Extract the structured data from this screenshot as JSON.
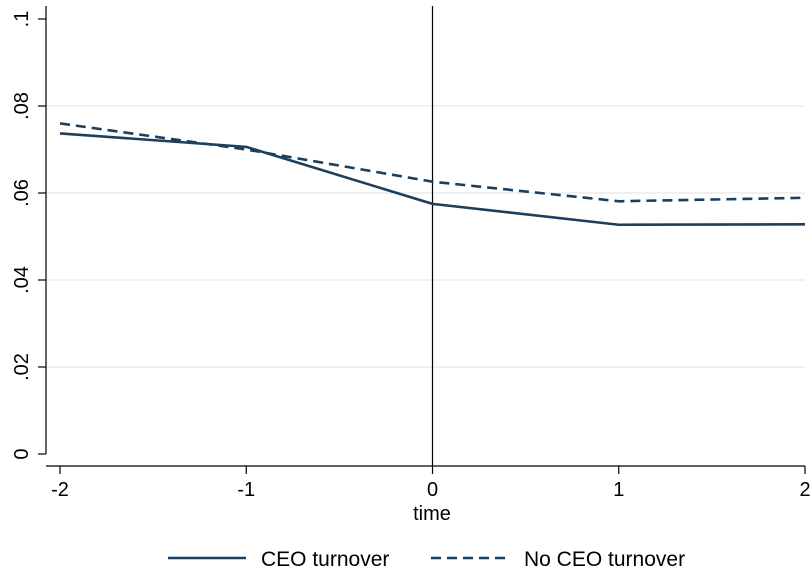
{
  "chart_data": {
    "type": "line",
    "xlabel": "time",
    "ylabel": "",
    "title": "",
    "x": [
      -2,
      -1,
      0,
      1,
      2
    ],
    "xticks": [
      "-2",
      "-1",
      "0",
      "1",
      "2"
    ],
    "yticks": [
      {
        "value": 0,
        "label": "0"
      },
      {
        "value": 0.02,
        "label": ".02"
      },
      {
        "value": 0.04,
        "label": ".04"
      },
      {
        "value": 0.06,
        "label": ".06"
      },
      {
        "value": 0.08,
        "label": ".08"
      },
      {
        "value": 0.1,
        "label": ".1"
      }
    ],
    "xlim": [
      -2,
      2
    ],
    "ylim": [
      0,
      0.1
    ],
    "grid": "horizontal",
    "reference_line_x": 0,
    "legend_position": "bottom",
    "series": [
      {
        "name": "CEO turnover",
        "style": "solid",
        "values": [
          0.0737,
          0.0706,
          0.0575,
          0.0527,
          0.0528
        ]
      },
      {
        "name": "No CEO turnover",
        "style": "dashed",
        "values": [
          0.076,
          0.07,
          0.0626,
          0.0581,
          0.0589
        ]
      }
    ],
    "colors": {
      "series": "#1c3f5e",
      "grid": "#e8ecee",
      "axis": "#000000",
      "reference_line": "#000000"
    }
  }
}
